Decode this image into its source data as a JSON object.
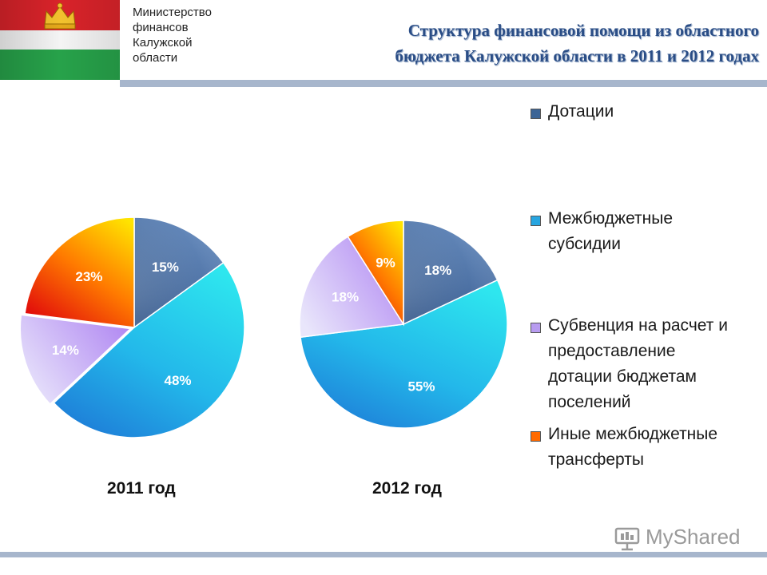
{
  "header": {
    "ministry_lines": [
      "Министерство",
      "финансов",
      "Калужской",
      "области"
    ],
    "title_lines": [
      "Структура финансовой помощи из областного",
      "бюджета Калужской области в 2011 и 2012 годах"
    ]
  },
  "colors": {
    "dotacii": "#3d6596",
    "subsidii": "#27a5e0",
    "subvencii": "#b89cf0",
    "inye": "#ff6a00"
  },
  "chart_data": [
    {
      "type": "pie",
      "title": "2011 год",
      "categories": [
        "Дотации",
        "Межбюджетные субсидии",
        "Субвенция на расчет и предоставление дотации бюджетам поселений",
        "Иные межбюджетные трансферты"
      ],
      "values": [
        15,
        48,
        14,
        23
      ],
      "labels": [
        "15%",
        "48%",
        "14%",
        "23%"
      ]
    },
    {
      "type": "pie",
      "title": "2012 год",
      "categories": [
        "Дотации",
        "Межбюджетные субсидии",
        "Субвенция на расчет и предоставление дотации бюджетам поселений",
        "Иные межбюджетные трансферты"
      ],
      "values": [
        18,
        55,
        18,
        9
      ],
      "labels": [
        "18%",
        "55%",
        "18%",
        "9%"
      ]
    }
  ],
  "legend": [
    {
      "lines": [
        "Дотации"
      ]
    },
    {
      "lines": [
        "Межбюджетные",
        "субсидии"
      ]
    },
    {
      "lines": [
        "Субвенция на расчет и",
        "предоставление",
        "дотации бюджетам",
        "поселений"
      ]
    },
    {
      "lines": [
        "Иные межбюджетные",
        "трансферты"
      ]
    }
  ],
  "watermark": {
    "text": "MyShared",
    "icon": "presentation-board-icon"
  }
}
